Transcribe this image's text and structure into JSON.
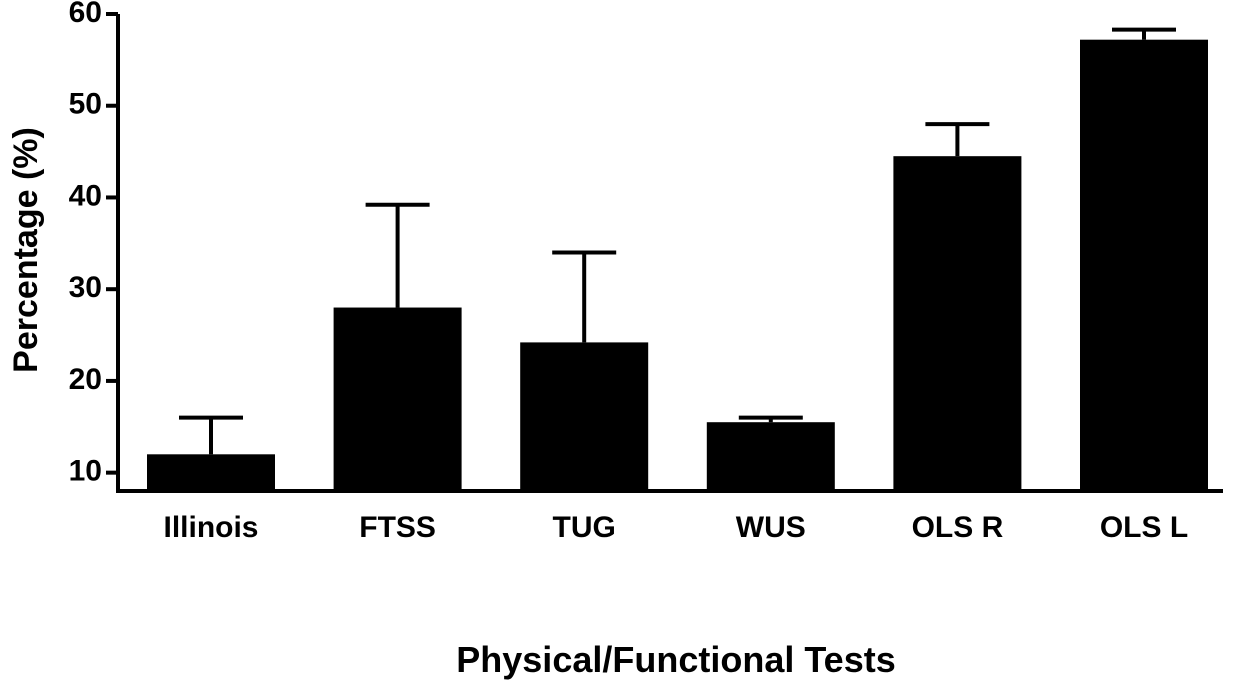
{
  "chart_data": {
    "type": "bar",
    "title": "",
    "xlabel": "Physical/Functional Tests",
    "ylabel": "Percentage (%)",
    "categories": [
      "Illinois",
      "FTSS",
      "TUG",
      "WUS",
      "OLS R",
      "OLS L"
    ],
    "values": [
      12,
      28,
      24.2,
      15.5,
      44.5,
      57.2
    ],
    "error_upper": [
      16,
      39.2,
      34,
      16,
      48,
      58.3
    ],
    "ylim": [
      8,
      60
    ],
    "yticks": [
      10,
      20,
      30,
      40,
      50,
      60
    ],
    "ytick_labels": [
      "10",
      "20",
      "30",
      "40",
      "50",
      "60"
    ],
    "grid": false,
    "legend": "none",
    "bar_color": "#000000"
  }
}
